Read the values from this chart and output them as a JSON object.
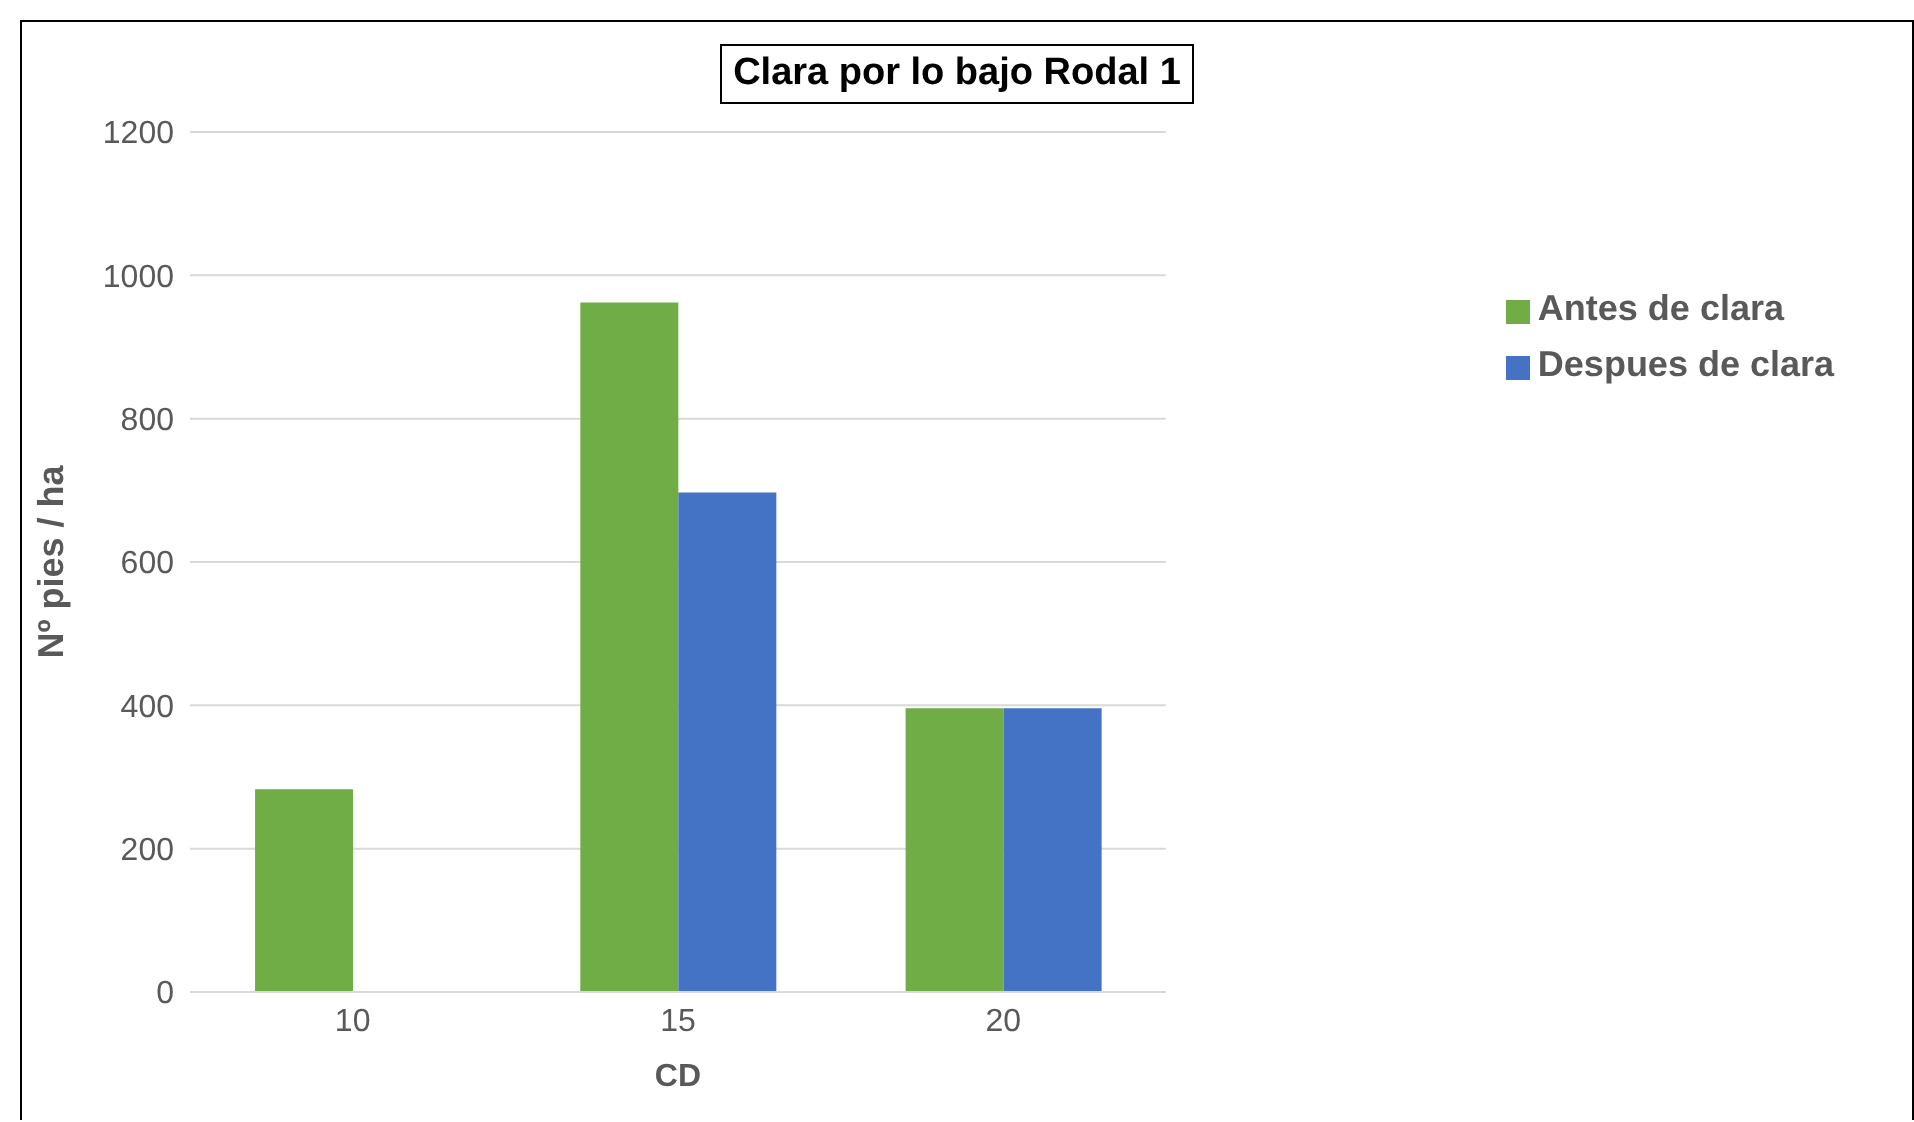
{
  "chart_data": {
    "type": "bar",
    "title": "Clara por lo bajo Rodal 1",
    "xlabel": "CD",
    "ylabel": "Nº pies / ha",
    "categories": [
      "10",
      "15",
      "20"
    ],
    "series": [
      {
        "name": "Antes de clara",
        "color": "#70ad47",
        "values": [
          283,
          962,
          396
        ]
      },
      {
        "name": "Despues de clara",
        "color": "#4472c4",
        "values": [
          null,
          697,
          396
        ]
      }
    ],
    "ylim": [
      0,
      1200
    ],
    "yticks": [
      0,
      200,
      400,
      600,
      800,
      1000,
      1200
    ],
    "grid": "y",
    "legend": "right"
  }
}
